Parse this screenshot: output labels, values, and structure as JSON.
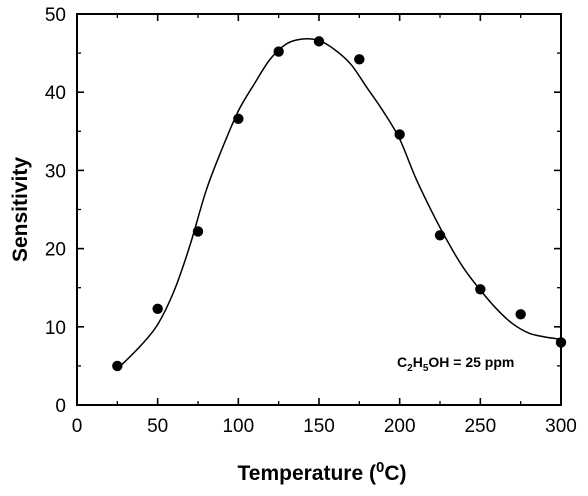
{
  "chart_data": {
    "type": "scatter",
    "title": "",
    "xlabel_main": "Temperature (",
    "xlabel_sup": "0",
    "xlabel_tail": "C)",
    "ylabel": "Sensitivity",
    "xlim": [
      0,
      300
    ],
    "ylim": [
      0,
      50
    ],
    "xticks": [
      "0",
      "50",
      "100",
      "150",
      "200",
      "250",
      "300"
    ],
    "yticks": [
      "0",
      "10",
      "20",
      "30",
      "40",
      "50"
    ],
    "xtick_values": [
      0,
      50,
      100,
      150,
      200,
      250,
      300
    ],
    "ytick_values": [
      0,
      10,
      20,
      30,
      40,
      50
    ],
    "grid": false,
    "legend": "none",
    "annotation": {
      "parts": [
        "C",
        "2",
        "H",
        "5",
        "OH = 25 ppm"
      ],
      "position": "bottom-right"
    },
    "series": [
      {
        "kind": "points",
        "color": "#000000",
        "x": [
          25,
          50,
          75,
          100,
          125,
          150,
          175,
          200,
          225,
          250,
          275,
          300
        ],
        "y": [
          5.0,
          12.3,
          22.2,
          36.6,
          45.2,
          46.5,
          44.2,
          34.6,
          21.7,
          14.8,
          11.6,
          8.0
        ]
      },
      {
        "kind": "fit-curve",
        "color": "#000000",
        "x": [
          25,
          30,
          40,
          50,
          60,
          70,
          80,
          90,
          100,
          110,
          120,
          130,
          140,
          150,
          160,
          170,
          180,
          190,
          200,
          210,
          220,
          230,
          240,
          250,
          260,
          270,
          280,
          290,
          300
        ],
        "y": [
          4.7,
          5.6,
          7.7,
          10.3,
          14.5,
          20.4,
          27.4,
          32.8,
          37.6,
          41.1,
          44.3,
          46.2,
          46.8,
          46.6,
          45.4,
          43.5,
          40.5,
          37.5,
          34.0,
          29.0,
          24.7,
          20.8,
          17.4,
          14.7,
          12.3,
          10.4,
          9.2,
          8.7,
          8.4
        ]
      }
    ]
  }
}
